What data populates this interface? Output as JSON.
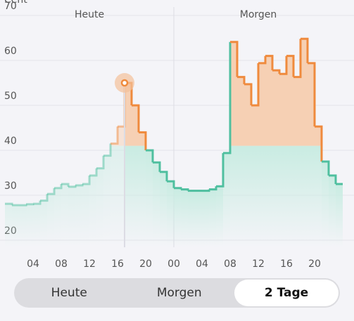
{
  "chart_data": {
    "type": "step",
    "unit": "Cent",
    "day_labels": [
      "Heute",
      "Morgen"
    ],
    "x": [
      0,
      1,
      2,
      3,
      4,
      5,
      6,
      7,
      8,
      9,
      10,
      11,
      12,
      13,
      14,
      15,
      16,
      17,
      18,
      19,
      20,
      21,
      22,
      23,
      24,
      25,
      26,
      27,
      28,
      29,
      30,
      31,
      32,
      33,
      34,
      35,
      36,
      37,
      38,
      39,
      40,
      41,
      42,
      43,
      44,
      45,
      46,
      47
    ],
    "values": [
      28.1,
      27.8,
      27.8,
      28,
      28.1,
      28.8,
      30.3,
      31.6,
      32.5,
      31.9,
      32.2,
      32.5,
      34.4,
      36,
      38.8,
      41.5,
      45.3,
      55,
      50,
      44,
      40,
      37.3,
      35.2,
      33.1,
      31.6,
      31.3,
      31,
      31,
      31,
      31.3,
      32,
      39.4,
      64.1,
      56.3,
      54.7,
      50,
      59.4,
      61,
      57.8,
      57,
      61,
      56.3,
      64.8,
      59.4,
      45.3,
      37.5,
      34.4,
      32.5
    ],
    "threshold": 41,
    "now": 17,
    "day_split": 24,
    "high_color": "#ef8a3d",
    "low_color": "#4fbf9f",
    "xlim": [
      0,
      48
    ],
    "xticks": [
      {
        "value": 4,
        "label": "04"
      },
      {
        "value": 8,
        "label": "08"
      },
      {
        "value": 12,
        "label": "12"
      },
      {
        "value": 16,
        "label": "16"
      },
      {
        "value": 20,
        "label": "20"
      },
      {
        "value": 24,
        "label": "00"
      },
      {
        "value": 28,
        "label": "04"
      },
      {
        "value": 32,
        "label": "08"
      },
      {
        "value": 36,
        "label": "12"
      },
      {
        "value": 40,
        "label": "16"
      },
      {
        "value": 44,
        "label": "20"
      }
    ],
    "ylim": [
      20,
      70
    ],
    "yticks": [
      20,
      30,
      40,
      50,
      60,
      70
    ],
    "grid": true
  },
  "tabs": [
    {
      "label": "Heute",
      "selected": false
    },
    {
      "label": "Morgen",
      "selected": false
    },
    {
      "label": "2 Tage",
      "selected": true
    }
  ]
}
